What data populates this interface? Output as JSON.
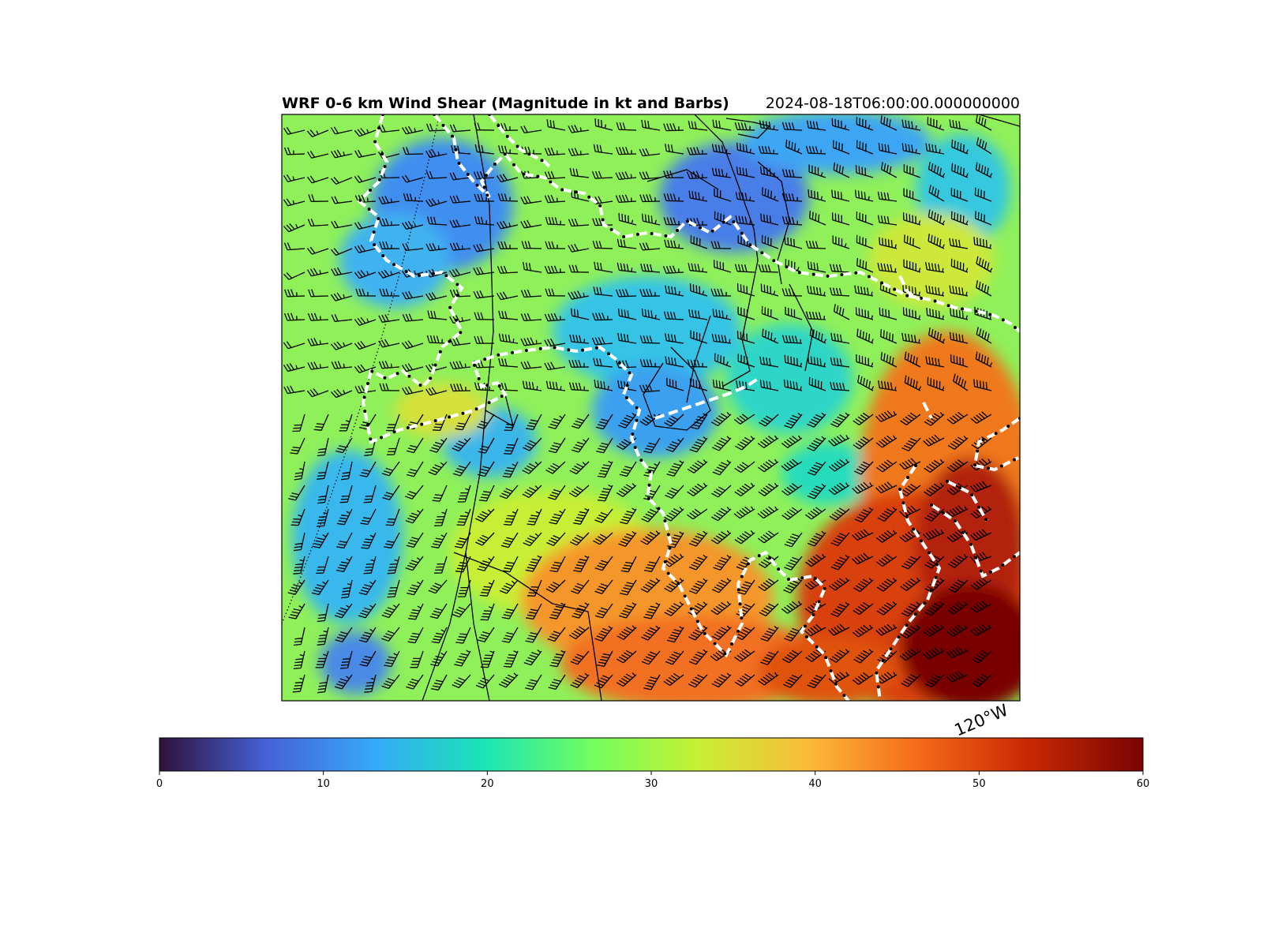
{
  "title": {
    "left": "WRF 0-6 km Wind Shear (Magnitude in kt and Barbs)",
    "right": "2024-08-18T06:00:00.000000000"
  },
  "map": {
    "longitude_label": "120°W",
    "field": "0-6 km wind shear magnitude",
    "units": "kt",
    "colormap": "turbo",
    "features": [
      "coastline",
      "state-borders",
      "county-lines",
      "meridian-gridline",
      "wind-barbs"
    ]
  },
  "colorbar": {
    "min": 0,
    "max": 60,
    "ticks": [
      "0",
      "10",
      "20",
      "30",
      "40",
      "50",
      "60"
    ],
    "colors": [
      "#30123b",
      "#4662d7",
      "#36a9f9",
      "#1ae4b6",
      "#72fe5e",
      "#c8ef34",
      "#faba39",
      "#f66b19",
      "#ca2a04",
      "#7a0403"
    ]
  }
}
